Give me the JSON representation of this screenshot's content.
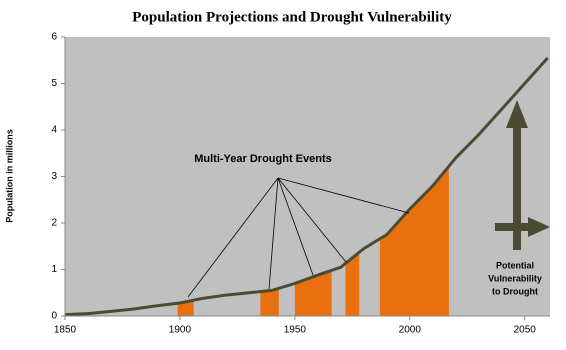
{
  "chart_data": {
    "type": "line",
    "title": "Population Projections and Drought Vulnerability",
    "y_label": "Population in millions",
    "x": [
      1850,
      1860,
      1870,
      1880,
      1890,
      1900,
      1910,
      1920,
      1930,
      1940,
      1950,
      1960,
      1970,
      1980,
      1990,
      2000,
      2010,
      2020,
      2030,
      2040,
      2050,
      2060
    ],
    "values": [
      0.03,
      0.05,
      0.1,
      0.15,
      0.22,
      0.28,
      0.38,
      0.45,
      0.5,
      0.55,
      0.7,
      0.88,
      1.05,
      1.45,
      1.75,
      2.3,
      2.8,
      3.4,
      3.9,
      4.45,
      5.0,
      5.55
    ],
    "color": "#4b4a32",
    "drought_events": [
      {
        "start": 1899,
        "end": 1906
      },
      {
        "start": 1935,
        "end": 1943
      },
      {
        "start": 1950,
        "end": 1966
      },
      {
        "start": 1972,
        "end": 1978
      },
      {
        "start": 1987,
        "end": 2017
      }
    ],
    "drought_color": "#e8700f",
    "drought_label": "Multi-Year Drought Events",
    "vulnerability_label": [
      "Potential",
      "Vulnerability",
      "to Drought"
    ],
    "xlim": [
      1850,
      2061
    ],
    "xticks": [
      1850,
      1900,
      1950,
      2000,
      2050
    ],
    "ylim": [
      0,
      6
    ],
    "yticks": [
      0,
      1,
      2,
      3,
      4,
      5,
      6
    ],
    "grid": false,
    "background": "#c0c0c0"
  }
}
